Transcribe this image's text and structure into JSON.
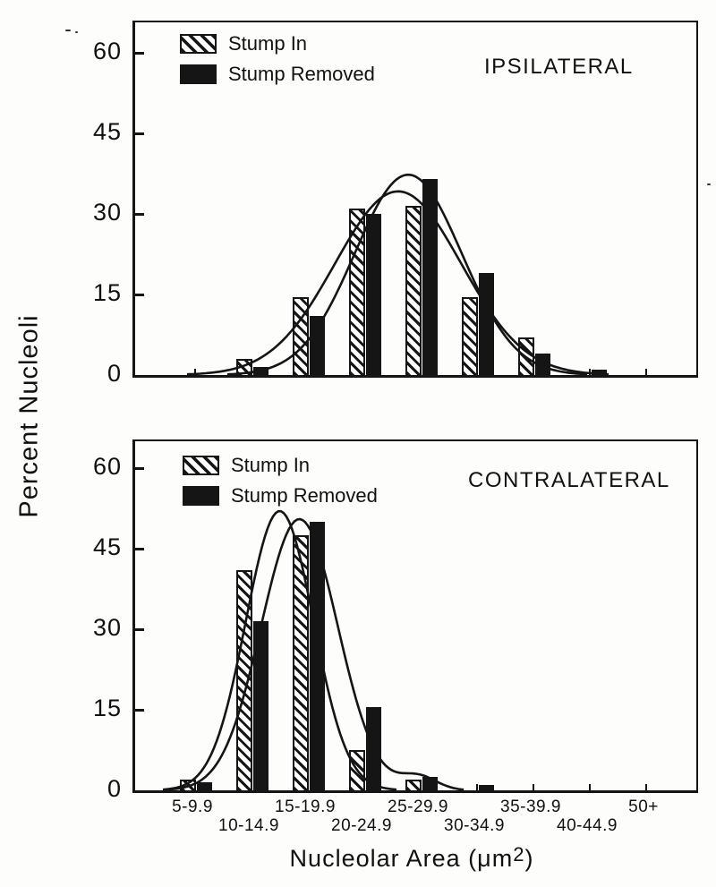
{
  "figure": {
    "y_axis_label": "Percent Nucleoli",
    "x_axis_title_prefix": "Nucleolar Area (μm",
    "x_axis_title_sup": "2",
    "x_axis_title_suffix": ")",
    "ink_color": "#151515",
    "paper_color": "#fdfdfc"
  },
  "chart_data": [
    {
      "type": "bar",
      "title": "IPSILATERAL",
      "categories": [
        "5-9.9",
        "10-14.9",
        "15-19.9",
        "20-24.9",
        "25-29.9",
        "30-34.9",
        "35-39.9",
        "40-44.9",
        "50+"
      ],
      "xlabel": "Nucleolar Area (μm2)",
      "ylabel": "Percent Nucleoli",
      "ylim": [
        0,
        65
      ],
      "yticks": [
        0,
        15,
        30,
        45,
        60
      ],
      "legend_position": "top-left",
      "grid": false,
      "series": [
        {
          "name": "Stump In",
          "style": "hatched",
          "values": [
            0,
            3,
            14.5,
            31,
            31.5,
            14.5,
            7,
            0,
            0
          ]
        },
        {
          "name": "Stump Removed",
          "style": "solid",
          "values": [
            0,
            1.5,
            11,
            30,
            36.5,
            19,
            4,
            1,
            0
          ]
        }
      ],
      "fitted_curves": [
        {
          "name": "Stump In fit",
          "peak_percent": 34.2,
          "center_category_index": 3.6,
          "sigma_categories": 1.12
        },
        {
          "name": "Stump Removed fit",
          "peak_percent": 37.3,
          "center_category_index": 3.78,
          "sigma_categories": 0.95
        }
      ]
    },
    {
      "type": "bar",
      "title": "CONTRALATERAL",
      "categories": [
        "5-9.9",
        "10-14.9",
        "15-19.9",
        "20-24.9",
        "25-29.9",
        "30-34.9",
        "35-39.9",
        "40-44.9",
        "50+"
      ],
      "xlabel": "Nucleolar Area (μm2)",
      "ylabel": "Percent Nucleoli",
      "ylim": [
        0,
        65
      ],
      "yticks": [
        0,
        15,
        30,
        45,
        60
      ],
      "legend_position": "top-left",
      "grid": false,
      "series": [
        {
          "name": "Stump In",
          "style": "hatched",
          "values": [
            2,
            41,
            47.5,
            7.5,
            2,
            0,
            0,
            0,
            0
          ]
        },
        {
          "name": "Stump Removed",
          "style": "solid",
          "values": [
            1.5,
            31.5,
            50,
            15.5,
            2.5,
            1,
            0,
            0,
            0
          ]
        }
      ],
      "fitted_curves": [
        {
          "name": "Stump In fit",
          "peak_percent": 52,
          "center_category_index": 1.5,
          "sigma_categories": 0.6
        },
        {
          "name": "Stump Removed fit",
          "peak_percent": 50.5,
          "center_category_index": 1.85,
          "sigma_categories": 0.68,
          "tail_bump": {
            "peak_percent": 2.6,
            "center_category_index": 3.95,
            "sigma_categories": 0.33
          }
        }
      ]
    }
  ]
}
